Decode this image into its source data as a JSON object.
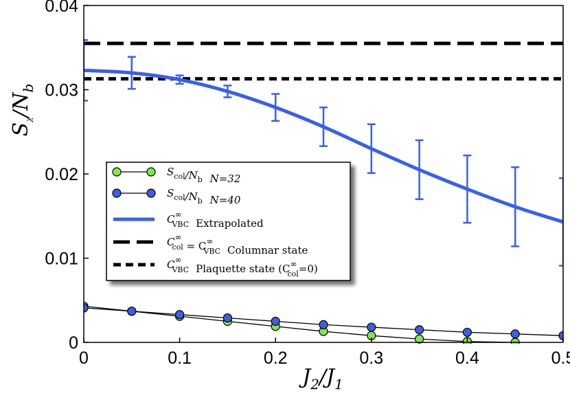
{
  "chart_data": {
    "type": "line",
    "xlabel": "J2/J1",
    "ylabel": "Sλ/Nb",
    "xlim": [
      0,
      0.5
    ],
    "ylim": [
      0,
      0.04
    ],
    "x_ticks": [
      0,
      0.1,
      0.2,
      0.3,
      0.4,
      0.5
    ],
    "x_tick_labels": [
      "0",
      "0.1",
      "0.2",
      "0.3",
      "0.4",
      "0.5"
    ],
    "y_ticks": [
      0,
      0.01,
      0.02,
      0.03,
      0.04
    ],
    "y_tick_labels": [
      "0",
      "0.01",
      "0.02",
      "0.03",
      "0.04"
    ],
    "grid": false,
    "legend_position": "center-left",
    "series": [
      {
        "name": "S_col/N_b N=32",
        "kind": "markers-line",
        "color": "#7fe84a",
        "x": [
          0,
          0.05,
          0.1,
          0.15,
          0.2,
          0.25,
          0.3,
          0.35,
          0.4,
          0.45
        ],
        "values": [
          0.0043,
          0.0037,
          0.0031,
          0.0025,
          0.0019,
          0.0013,
          0.0008,
          0.0004,
          0.0001,
          0.0
        ]
      },
      {
        "name": "S_col/N_b N=40",
        "kind": "markers-line",
        "color": "#3f5de0",
        "x": [
          0,
          0.05,
          0.1,
          0.15,
          0.2,
          0.25,
          0.3,
          0.35,
          0.4,
          0.45,
          0.5
        ],
        "values": [
          0.0041,
          0.0037,
          0.0033,
          0.0029,
          0.0025,
          0.0021,
          0.0018,
          0.0015,
          0.0012,
          0.001,
          0.0008
        ]
      },
      {
        "name": "C_VBC^∞ Extrapolated",
        "kind": "line-errorbars",
        "color": "#3a5ef0",
        "x": [
          0,
          0.05,
          0.1,
          0.15,
          0.2,
          0.25,
          0.3,
          0.35,
          0.4,
          0.45,
          0.5
        ],
        "values": [
          0.0323,
          0.032,
          0.0312,
          0.0298,
          0.0279,
          0.0256,
          0.023,
          0.0205,
          0.0182,
          0.0161,
          0.0143
        ],
        "errors": [
          0.0036,
          0.0019,
          0.0005,
          0.0007,
          0.0016,
          0.0023,
          0.0029,
          0.0035,
          0.004,
          0.0047,
          0.0052
        ]
      },
      {
        "name": "C_col^∞ = C_VBC^∞ Columnar state",
        "kind": "hline-dashed-long",
        "color": "#000000",
        "value": 0.0355
      },
      {
        "name": "C_VBC^∞ Plaquette state (C_col^∞=0)",
        "kind": "hline-dashed-short",
        "color": "#000000",
        "value": 0.0313
      }
    ],
    "legend": [
      {
        "symbol": "S",
        "sub": "col",
        "over": "/N",
        "over_sub": "b",
        "extra": "N=32"
      },
      {
        "symbol": "S",
        "sub": "col",
        "over": "/N",
        "over_sub": "b",
        "extra": "N=40"
      },
      {
        "symbol": "C",
        "sup": "∞",
        "sub": "VBC",
        "label": "Extrapolated"
      },
      {
        "symbol": "C",
        "sup": "∞",
        "sub": "col",
        "eq": "= C",
        "eq_sup": "∞",
        "eq_sub": "VBC",
        "label": "Columnar state"
      },
      {
        "symbol": "C",
        "sup": "∞",
        "sub": "VBC",
        "label": "Plaquette state (C",
        "label_sup": "∞",
        "label_sub": "col",
        "label_tail": "=0)"
      }
    ],
    "axis_title_x": {
      "main": "J",
      "sub1": "2",
      "slash": "/J",
      "sub2": "1"
    },
    "axis_title_y": {
      "main": "S",
      "sub1": "λ",
      "slash": "/N",
      "sub2": "b"
    }
  }
}
